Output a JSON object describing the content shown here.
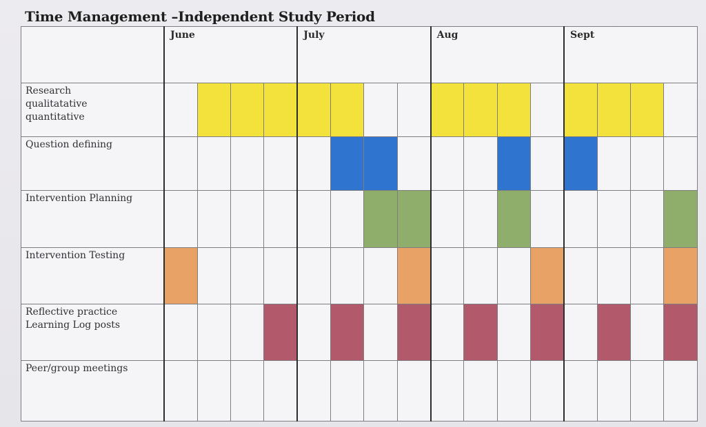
{
  "title": "Time Management –Independent Study Period",
  "months": [
    "June",
    "July",
    "Aug",
    "Sept"
  ],
  "colors": {
    "yellow": "#f2e23b",
    "blue": "#2f75d0",
    "green": "#8fad6b",
    "orange": "#e9a266",
    "rose": "#b25a6b"
  },
  "tasks": [
    {
      "label": "Research\nqualitatative\nquantitative",
      "color": "yellow",
      "filled_weeks": [
        1,
        2,
        3,
        4,
        5,
        8,
        9,
        10,
        12,
        13,
        14
      ]
    },
    {
      "label": "Question defining",
      "color": "blue",
      "filled_weeks": [
        5,
        6,
        10,
        12
      ]
    },
    {
      "label": "Intervention Planning",
      "color": "green",
      "filled_weeks": [
        6,
        7,
        10,
        15
      ]
    },
    {
      "label": "Intervention Testing",
      "color": "orange",
      "filled_weeks": [
        0,
        7,
        11,
        15
      ]
    },
    {
      "label": "Reflective practice\nLearning Log posts",
      "color": "rose",
      "filled_weeks": [
        3,
        5,
        7,
        9,
        11,
        13,
        15
      ]
    },
    {
      "label": "Peer/group meetings",
      "color": "",
      "filled_weeks": []
    }
  ]
}
